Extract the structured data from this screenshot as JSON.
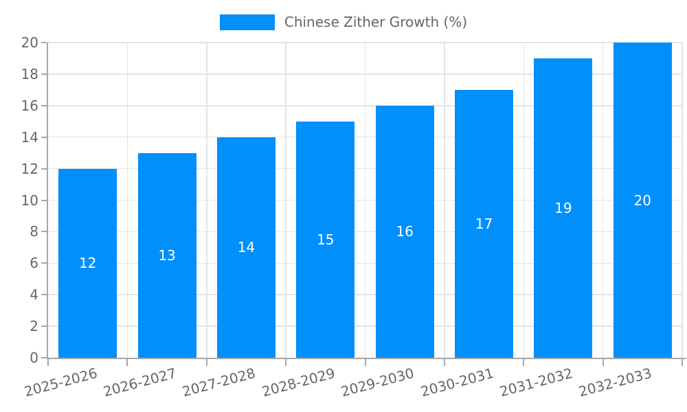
{
  "chart_data": {
    "type": "bar",
    "title": "Chinese Zither Growth (%)",
    "categories": [
      "2025-2026",
      "2026-2027",
      "2027-2028",
      "2028-2029",
      "2029-2030",
      "2030-2031",
      "2031-2032",
      "2032-2033"
    ],
    "values": [
      12,
      13,
      14,
      15,
      16,
      17,
      19,
      20
    ],
    "xlabel": "",
    "ylabel": "",
    "ylim": [
      0,
      20
    ],
    "yticks": [
      0,
      2,
      4,
      6,
      8,
      10,
      12,
      14,
      16,
      18,
      20
    ],
    "grid": true,
    "legend_position": "top",
    "bar_labels_inside": true,
    "colors": {
      "bar": "#008FFB",
      "bar_value_label": "#FFFFFF",
      "axis_text": "#666666",
      "grid_line": "#E3E3E3",
      "axis_line": "#A6A6A6",
      "background": "#FFFFFF"
    }
  }
}
